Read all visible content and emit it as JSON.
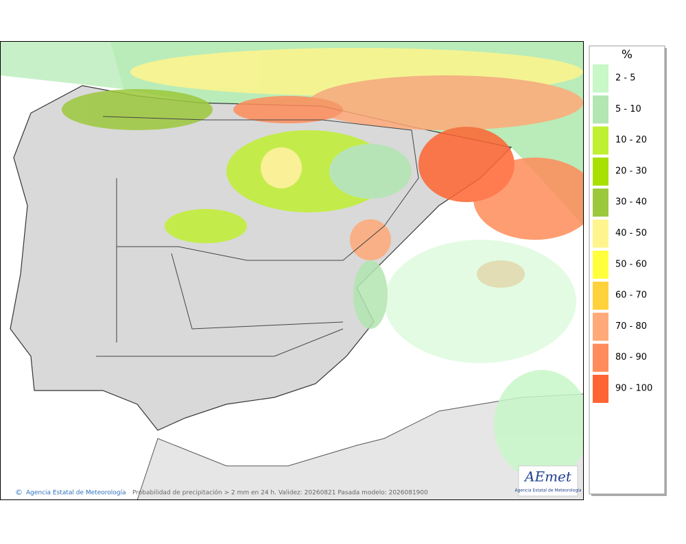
{
  "legend": {
    "title": "%",
    "items": [
      {
        "label": "2 - 5",
        "color": "#c8f7c8"
      },
      {
        "label": "5 - 10",
        "color": "#b2e6b2"
      },
      {
        "label": "10 - 20",
        "color": "#c0f032"
      },
      {
        "label": "20 - 30",
        "color": "#a8e000"
      },
      {
        "label": "30 - 40",
        "color": "#9cc83c"
      },
      {
        "label": "40 - 50",
        "color": "#fff58c"
      },
      {
        "label": "50 - 60",
        "color": "#ffff3c"
      },
      {
        "label": "60 - 70",
        "color": "#ffd23c"
      },
      {
        "label": "70 - 80",
        "color": "#ffaa78"
      },
      {
        "label": "80 - 90",
        "color": "#ff8c5a"
      },
      {
        "label": "90 - 100",
        "color": "#ff6432"
      }
    ]
  },
  "footer": {
    "agency": "Agencia Estatal de Meteorología",
    "caption": "Probabilidad de precipitación > 2 mm en 24 h. Validez: 20260821 Pasada modelo: 2026081900"
  },
  "logo": {
    "name": "AEmet",
    "subtitle": "Agencia Estatal de Meteorología"
  }
}
